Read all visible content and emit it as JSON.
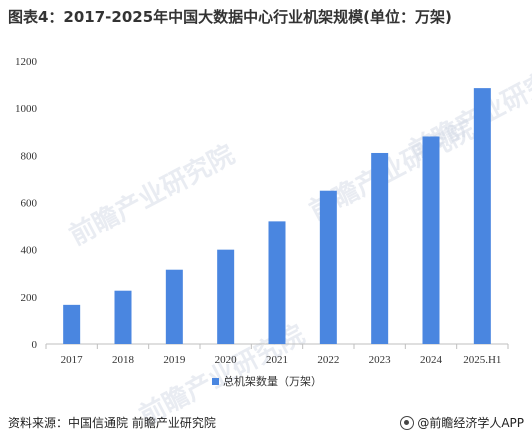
{
  "figure": {
    "title": "图表4：2017-2025年中国大数据中心行业机架规模(单位：万架)",
    "source": "资料来源：中国信通院 前瞻产业研究院",
    "brand": "@前瞻经济学人APP",
    "watermark": "前瞻产业研究院"
  },
  "chart_data": {
    "type": "bar",
    "title": "图表4：2017-2025年中国大数据中心行业机架规模(单位：万架)",
    "categories": [
      "2017",
      "2018",
      "2019",
      "2020",
      "2021",
      "2022",
      "2023",
      "2024",
      "2025.H1"
    ],
    "series": [
      {
        "name": "总机架数量（万架）",
        "values": [
          166,
          226,
          315,
          400,
          520,
          650,
          810,
          880,
          1085
        ]
      }
    ],
    "ylim": [
      0,
      1200
    ],
    "yticks": [
      0,
      200,
      400,
      600,
      800,
      1000,
      1200
    ],
    "grid": false,
    "legend_position": "bottom",
    "bar_color": "#4a86e0"
  }
}
